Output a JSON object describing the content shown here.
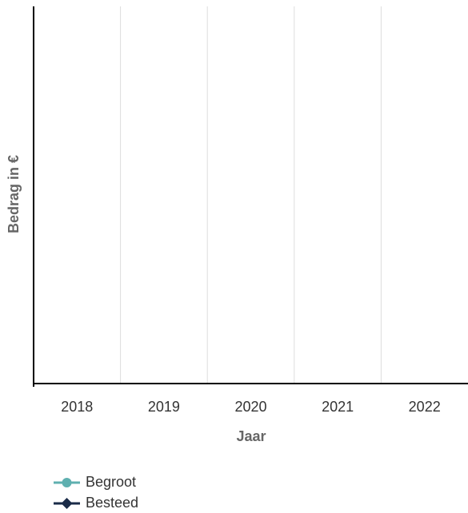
{
  "chart_data": {
    "type": "line",
    "categories": [
      "2018",
      "2019",
      "2020",
      "2021",
      "2022"
    ],
    "x_label": "Jaar",
    "y_label": "Bedrag in €",
    "series": [
      {
        "name": "Begroot",
        "color": "#5fb0b0",
        "marker": "circle",
        "values": [
          null,
          null,
          null,
          null,
          null
        ]
      },
      {
        "name": "Besteed",
        "color": "#1a2b48",
        "marker": "diamond",
        "values": [
          null,
          null,
          null,
          null,
          null
        ]
      }
    ],
    "grid": true
  }
}
